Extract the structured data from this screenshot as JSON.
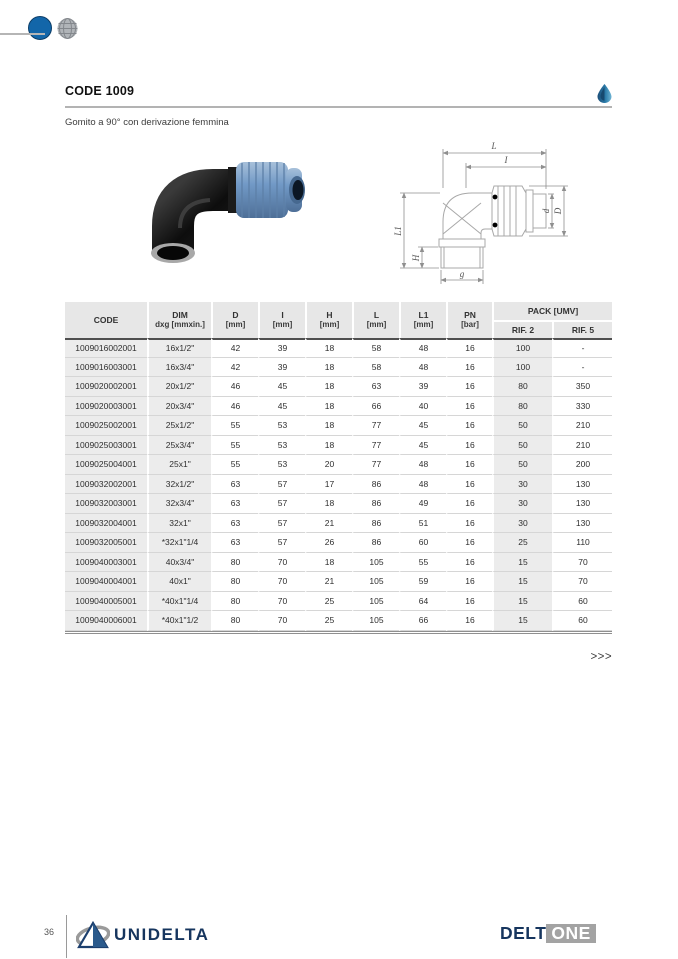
{
  "page": {
    "code_title": "CODE 1009",
    "subtitle": "Gomito a 90° con derivazione femmina",
    "more_indicator": ">>>"
  },
  "table": {
    "headers": {
      "code": "CODE",
      "dim_top": "DIM",
      "dim_sub": "dxg [mmxin.]",
      "d_top": "D",
      "d_sub": "[mm]",
      "i_top": "I",
      "i_sub": "[mm]",
      "h_top": "H",
      "h_sub": "[mm]",
      "l_top": "L",
      "l_sub": "[mm]",
      "l1_top": "L1",
      "l1_sub": "[mm]",
      "pn_top": "PN",
      "pn_sub": "[bar]",
      "pack_group": "PACK [UMV]",
      "rif2": "RIF. 2",
      "rif5": "RIF. 5"
    },
    "rows": [
      [
        "1009016002001",
        "16x1/2\"",
        "42",
        "39",
        "18",
        "58",
        "48",
        "16",
        "100",
        "-"
      ],
      [
        "1009016003001",
        "16x3/4\"",
        "42",
        "39",
        "18",
        "58",
        "48",
        "16",
        "100",
        "-"
      ],
      [
        "1009020002001",
        "20x1/2\"",
        "46",
        "45",
        "18",
        "63",
        "39",
        "16",
        "80",
        "350"
      ],
      [
        "1009020003001",
        "20x3/4\"",
        "46",
        "45",
        "18",
        "66",
        "40",
        "16",
        "80",
        "330"
      ],
      [
        "1009025002001",
        "25x1/2\"",
        "55",
        "53",
        "18",
        "77",
        "45",
        "16",
        "50",
        "210"
      ],
      [
        "1009025003001",
        "25x3/4\"",
        "55",
        "53",
        "18",
        "77",
        "45",
        "16",
        "50",
        "210"
      ],
      [
        "1009025004001",
        "25x1\"",
        "55",
        "53",
        "20",
        "77",
        "48",
        "16",
        "50",
        "200"
      ],
      [
        "1009032002001",
        "32x1/2\"",
        "63",
        "57",
        "17",
        "86",
        "48",
        "16",
        "30",
        "130"
      ],
      [
        "1009032003001",
        "32x3/4\"",
        "63",
        "57",
        "18",
        "86",
        "49",
        "16",
        "30",
        "130"
      ],
      [
        "1009032004001",
        "32x1\"",
        "63",
        "57",
        "21",
        "86",
        "51",
        "16",
        "30",
        "130"
      ],
      [
        "1009032005001",
        "*32x1\"1/4",
        "63",
        "57",
        "26",
        "86",
        "60",
        "16",
        "25",
        "110"
      ],
      [
        "1009040003001",
        "40x3/4\"",
        "80",
        "70",
        "18",
        "105",
        "55",
        "16",
        "15",
        "70"
      ],
      [
        "1009040004001",
        "40x1\"",
        "80",
        "70",
        "21",
        "105",
        "59",
        "16",
        "15",
        "70"
      ],
      [
        "1009040005001",
        "*40x1\"1/4",
        "80",
        "70",
        "25",
        "105",
        "64",
        "16",
        "15",
        "60"
      ],
      [
        "1009040006001",
        "*40x1\"1/2",
        "80",
        "70",
        "25",
        "105",
        "66",
        "16",
        "15",
        "60"
      ]
    ]
  },
  "diagram_labels": {
    "L": "L",
    "I": "I",
    "d": "d",
    "D": "D",
    "L1": "L1",
    "H": "H",
    "g": "g"
  },
  "footer": {
    "page_number": "36",
    "brand_left": "UNIDELTA",
    "brand_right_1": "DELT",
    "brand_right_2": "ONE"
  }
}
